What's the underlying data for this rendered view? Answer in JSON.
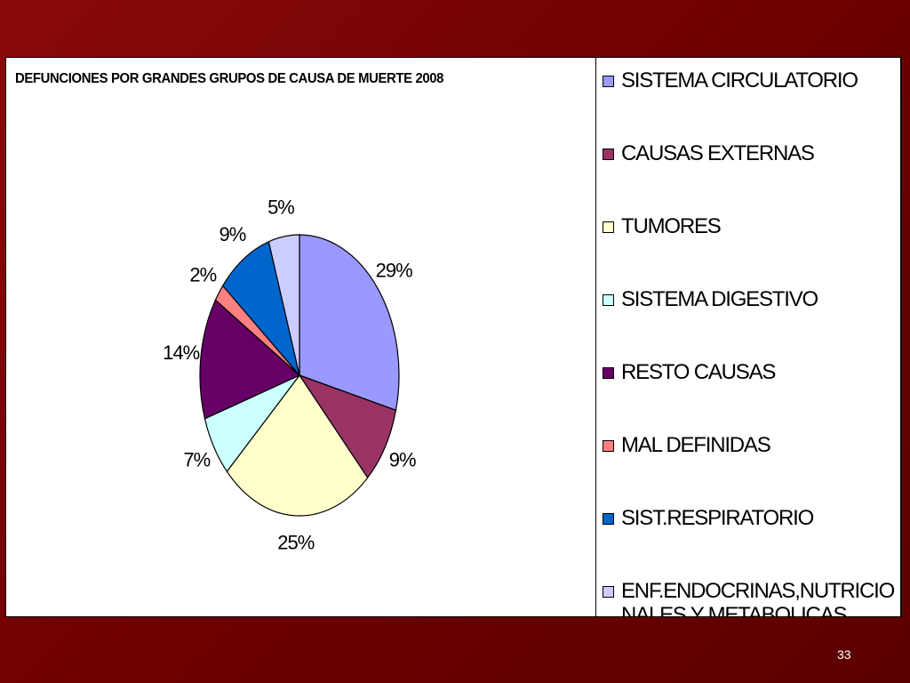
{
  "page_number": "33",
  "chart_data": {
    "type": "pie",
    "title": "DEFUNCIONES POR GRANDES GRUPOS DE CAUSA DE MUERTE 2008",
    "categories": [
      "SISTEMA CIRCULATORIO",
      "CAUSAS EXTERNAS",
      "TUMORES",
      "SISTEMA DIGESTIVO",
      "RESTO CAUSAS",
      "MAL DEFINIDAS",
      "SIST.RESPIRATORIO",
      "ENF.ENDOCRINAS,NUTRICIONALES Y METABOLICAS"
    ],
    "values": [
      29,
      9,
      25,
      7,
      14,
      2,
      9,
      5
    ],
    "labels": [
      "29%",
      "9%",
      "25%",
      "7%",
      "14%",
      "2%",
      "9%",
      "5%"
    ],
    "colors": [
      "#9999ff",
      "#993366",
      "#ffffcc",
      "#ccffff",
      "#660066",
      "#ff8080",
      "#0066cc",
      "#ccccff"
    ],
    "legend_position": "right",
    "start_angle": "12 o'clock",
    "direction": "clockwise"
  }
}
